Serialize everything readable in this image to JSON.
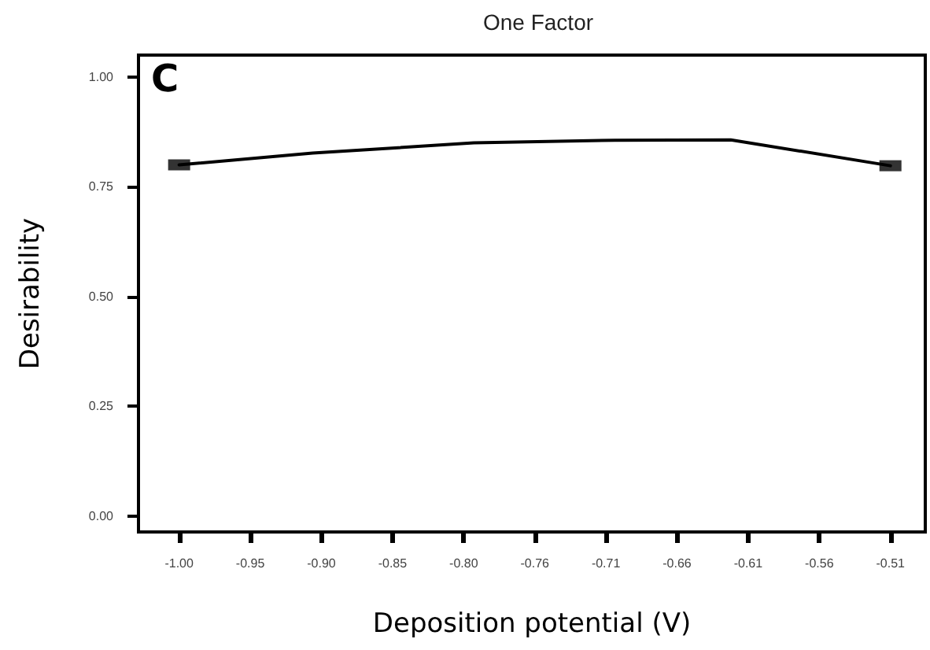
{
  "chart_data": {
    "type": "line",
    "title": "One Factor",
    "xlabel": "Deposition potential (V)",
    "ylabel": "Desirability",
    "annotations": [
      "C"
    ],
    "series": [
      {
        "color": "#000000",
        "x": [
          -1.0,
          -0.908,
          -0.797,
          -0.7,
          -0.62,
          -0.51
        ],
        "values": [
          0.8,
          0.827,
          0.85,
          0.856,
          0.857,
          0.798
        ]
      },
      {
        "type": "scatter",
        "color": "#000000",
        "marker": "square",
        "x": [
          -1.0,
          -0.51
        ],
        "values": [
          0.8,
          0.798
        ]
      }
    ],
    "xlim": [
      -1.028,
      -0.486
    ],
    "xticks": [
      {
        "value": -1.0,
        "label": "-1.00"
      },
      {
        "value": -0.951,
        "label": "-0.95"
      },
      {
        "value": -0.902,
        "label": "-0.90"
      },
      {
        "value": -0.853,
        "label": "-0.85"
      },
      {
        "value": -0.804,
        "label": "-0.80"
      },
      {
        "value": -0.755,
        "label": "-0.76"
      },
      {
        "value": -0.706,
        "label": "-0.71"
      },
      {
        "value": -0.657,
        "label": "-0.66"
      },
      {
        "value": -0.608,
        "label": "-0.61"
      },
      {
        "value": -0.559,
        "label": "-0.56"
      },
      {
        "value": -0.51,
        "label": "-0.51"
      }
    ],
    "ylim": [
      -0.036,
      1.05
    ],
    "yticks": [
      {
        "value": 0,
        "label": "0.00"
      },
      {
        "value": 0.25,
        "label": "0.25"
      },
      {
        "value": 0.5,
        "label": "0.50"
      },
      {
        "value": 0.75,
        "label": "0.75"
      },
      {
        "value": 1,
        "label": "1.00"
      }
    ],
    "marker": "none"
  }
}
